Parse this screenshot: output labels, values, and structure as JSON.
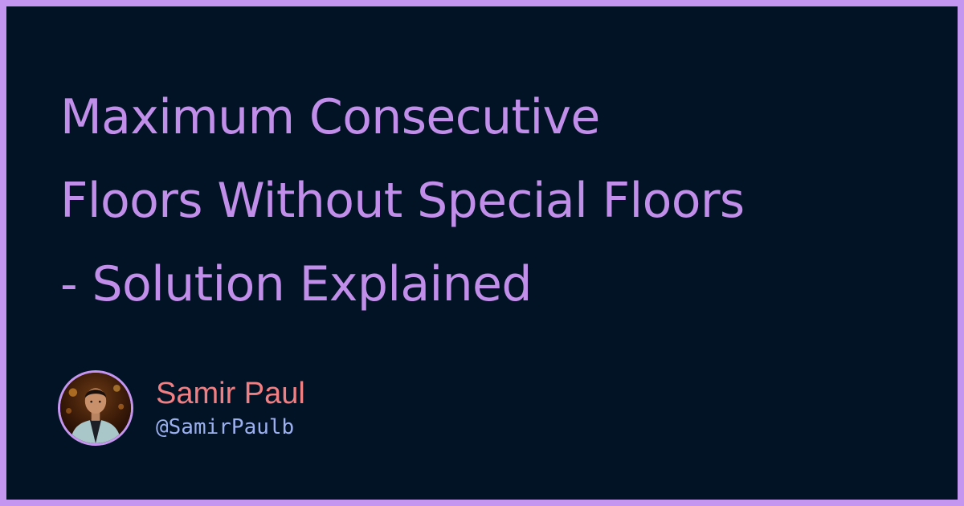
{
  "article": {
    "title_lines": [
      "Maximum Consecutive",
      "Floors Without Special Floors",
      "- Solution Explained"
    ]
  },
  "author": {
    "name": "Samir Paul",
    "handle": "@SamirPaulb",
    "avatar_icon": "author-photo"
  },
  "colors": {
    "frame": "#c596ef",
    "background": "#031326",
    "title": "#c18fe9",
    "name": "#ef7f82",
    "handle": "#9cb0f0"
  }
}
